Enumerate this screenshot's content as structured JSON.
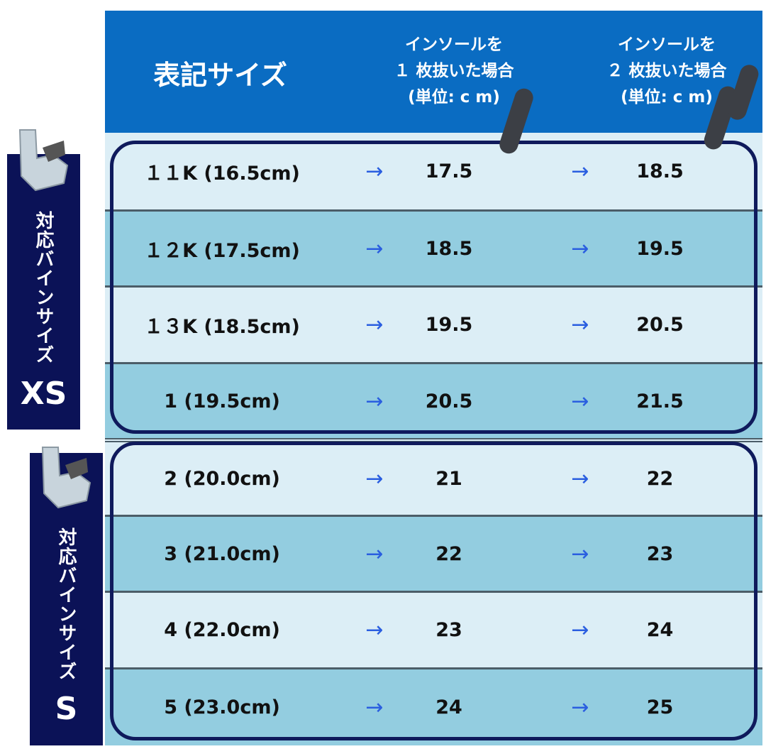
{
  "header": {
    "col0": "表記サイズ",
    "col1": [
      "インソールを",
      "１ 枚抜いた場合",
      "(単位: c m)"
    ],
    "col2": [
      "インソールを",
      "２ 枚抜いた場合",
      "(単位: c m)"
    ]
  },
  "arrow": "→",
  "groups": [
    {
      "label": "対応バインサイズ",
      "code": "XS"
    },
    {
      "label": "対応バインサイズ",
      "code": "S"
    }
  ],
  "rows": [
    {
      "size": "１１K (16.5cm)",
      "one": "17.5",
      "two": "18.5"
    },
    {
      "size": "１２K (17.5cm)",
      "one": "18.5",
      "two": "19.5"
    },
    {
      "size": "１３K (18.5cm)",
      "one": "19.5",
      "two": "20.5"
    },
    {
      "size": "1 (19.5cm)",
      "one": "20.5",
      "two": "21.5"
    },
    {
      "size": "2 (20.0cm)",
      "one": "21",
      "two": "22"
    },
    {
      "size": "3 (21.0cm)",
      "one": "22",
      "two": "23"
    },
    {
      "size": "4 (22.0cm)",
      "one": "23",
      "two": "24"
    },
    {
      "size": "5 (23.0cm)",
      "one": "24",
      "two": "25"
    }
  ],
  "colors": {
    "header": "#0a6cc2",
    "navy": "#0b1257",
    "row_light": "#dceef6",
    "row_dark": "#93cde0",
    "arrow": "#2a5ee0"
  }
}
